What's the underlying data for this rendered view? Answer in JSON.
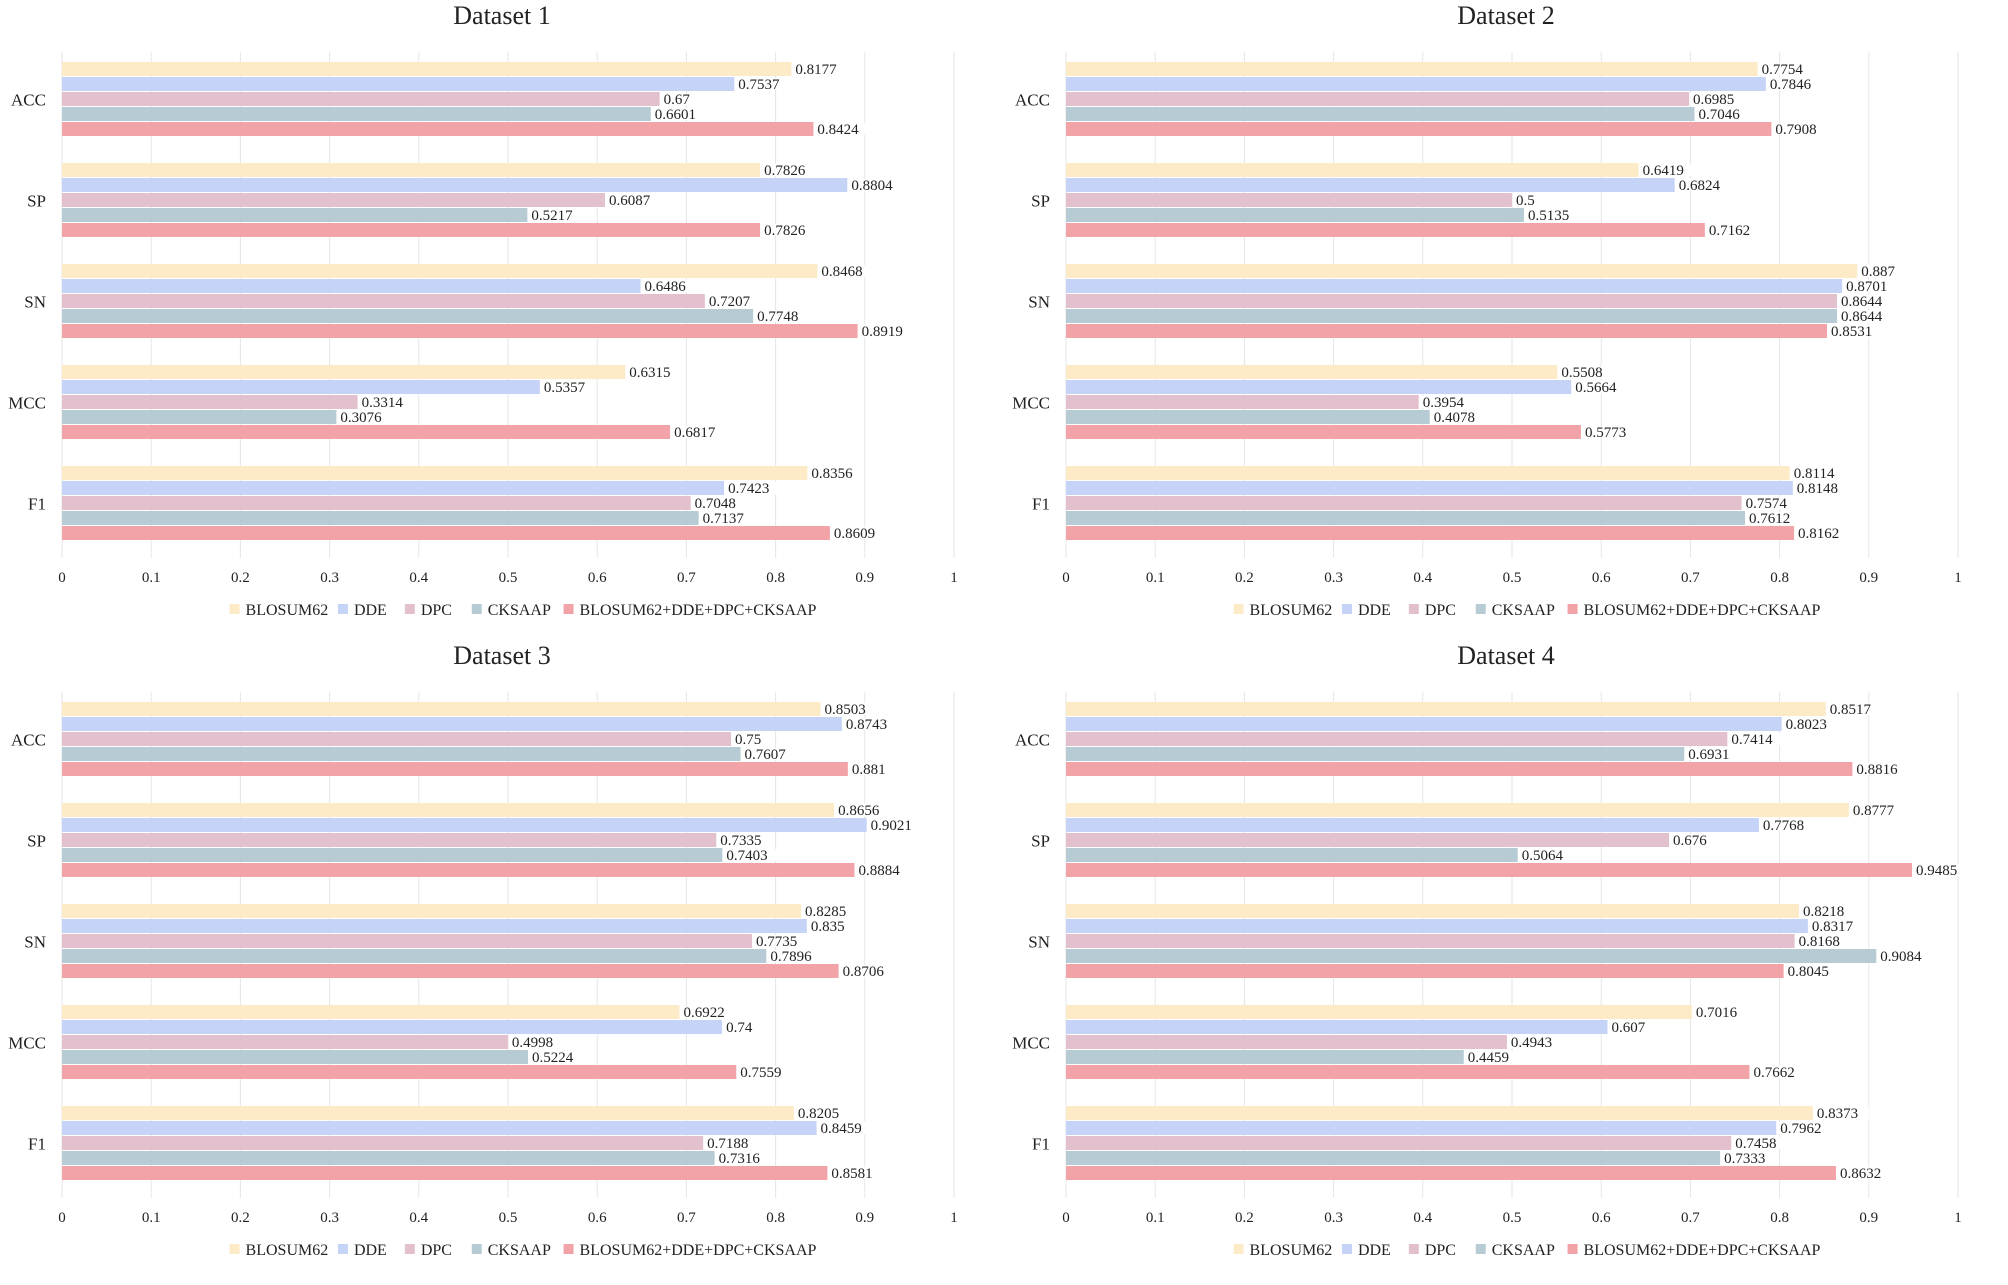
{
  "chart_data": [
    {
      "type": "bar",
      "orientation": "horizontal",
      "title": "Dataset 1",
      "categories": [
        "ACC",
        "SP",
        "SN",
        "MCC",
        "F1"
      ],
      "xlim": [
        0,
        1
      ],
      "xticks": [
        "0",
        "0.1",
        "0.2",
        "0.3",
        "0.4",
        "0.5",
        "0.6",
        "0.7",
        "0.8",
        "0.9",
        "1"
      ],
      "grid": true,
      "legend": "bottom",
      "series": [
        {
          "name": "BLOSUM62",
          "values": [
            0.8177,
            0.7826,
            0.8468,
            0.6315,
            0.8356
          ]
        },
        {
          "name": "DDE",
          "values": [
            0.7537,
            0.8804,
            0.6486,
            0.5357,
            0.7423
          ]
        },
        {
          "name": "DPC",
          "values": [
            0.67,
            0.6087,
            0.7207,
            0.3314,
            0.7048
          ]
        },
        {
          "name": "CKSAAP",
          "values": [
            0.6601,
            0.5217,
            0.7748,
            0.3076,
            0.7137
          ]
        },
        {
          "name": "BLOSUM62+DDE+DPC+CKSAAP",
          "values": [
            0.8424,
            0.7826,
            0.8919,
            0.6817,
            0.8609
          ]
        }
      ]
    },
    {
      "type": "bar",
      "orientation": "horizontal",
      "title": "Dataset 2",
      "categories": [
        "ACC",
        "SP",
        "SN",
        "MCC",
        "F1"
      ],
      "xlim": [
        0,
        1
      ],
      "xticks": [
        "0",
        "0.1",
        "0.2",
        "0.3",
        "0.4",
        "0.5",
        "0.6",
        "0.7",
        "0.8",
        "0.9",
        "1"
      ],
      "grid": true,
      "legend": "bottom",
      "series": [
        {
          "name": "BLOSUM62",
          "values": [
            0.7754,
            0.6419,
            0.887,
            0.5508,
            0.8114
          ]
        },
        {
          "name": "DDE",
          "values": [
            0.7846,
            0.6824,
            0.8701,
            0.5664,
            0.8148
          ]
        },
        {
          "name": "DPC",
          "values": [
            0.6985,
            0.5,
            0.8644,
            0.3954,
            0.7574
          ]
        },
        {
          "name": "CKSAAP",
          "values": [
            0.7046,
            0.5135,
            0.8644,
            0.4078,
            0.7612
          ]
        },
        {
          "name": "BLOSUM62+DDE+DPC+CKSAAP",
          "values": [
            0.7908,
            0.7162,
            0.8531,
            0.5773,
            0.8162
          ]
        }
      ]
    },
    {
      "type": "bar",
      "orientation": "horizontal",
      "title": "Dataset 3",
      "categories": [
        "ACC",
        "SP",
        "SN",
        "MCC",
        "F1"
      ],
      "xlim": [
        0,
        1
      ],
      "xticks": [
        "0",
        "0.1",
        "0.2",
        "0.3",
        "0.4",
        "0.5",
        "0.6",
        "0.7",
        "0.8",
        "0.9",
        "1"
      ],
      "grid": true,
      "legend": "bottom",
      "series": [
        {
          "name": "BLOSUM62",
          "values": [
            0.8503,
            0.8656,
            0.8285,
            0.6922,
            0.8205
          ]
        },
        {
          "name": "DDE",
          "values": [
            0.8743,
            0.9021,
            0.835,
            0.74,
            0.8459
          ]
        },
        {
          "name": "DPC",
          "values": [
            0.75,
            0.7335,
            0.7735,
            0.4998,
            0.7188
          ]
        },
        {
          "name": "CKSAAP",
          "values": [
            0.7607,
            0.7403,
            0.7896,
            0.5224,
            0.7316
          ]
        },
        {
          "name": "BLOSUM62+DDE+DPC+CKSAAP",
          "values": [
            0.881,
            0.8884,
            0.8706,
            0.7559,
            0.8581
          ]
        }
      ]
    },
    {
      "type": "bar",
      "orientation": "horizontal",
      "title": "Dataset 4",
      "categories": [
        "ACC",
        "SP",
        "SN",
        "MCC",
        "F1"
      ],
      "xlim": [
        0,
        1
      ],
      "xticks": [
        "0",
        "0.1",
        "0.2",
        "0.3",
        "0.4",
        "0.5",
        "0.6",
        "0.7",
        "0.8",
        "0.9",
        "1"
      ],
      "grid": true,
      "legend": "bottom",
      "series": [
        {
          "name": "BLOSUM62",
          "values": [
            0.8517,
            0.8777,
            0.8218,
            0.7016,
            0.8373
          ]
        },
        {
          "name": "DDE",
          "values": [
            0.8023,
            0.7768,
            0.8317,
            0.607,
            0.7962
          ]
        },
        {
          "name": "DPC",
          "values": [
            0.7414,
            0.676,
            0.8168,
            0.4943,
            0.7458
          ]
        },
        {
          "name": "CKSAAP",
          "values": [
            0.6931,
            0.5064,
            0.9084,
            0.4459,
            0.7333
          ]
        },
        {
          "name": "BLOSUM62+DDE+DPC+CKSAAP",
          "values": [
            0.8816,
            0.9485,
            0.8045,
            0.7662,
            0.8632
          ]
        }
      ]
    }
  ],
  "colors": {
    "BLOSUM62": "#FDEBC8",
    "DDE": "#C5D3F7",
    "DPC": "#E3C0CD",
    "CKSAAP": "#B7CBD5",
    "BLOSUM62+DDE+DPC+CKSAAP": "#F2A3A8",
    "grid": "#E6E6E6",
    "text": "#222222"
  }
}
